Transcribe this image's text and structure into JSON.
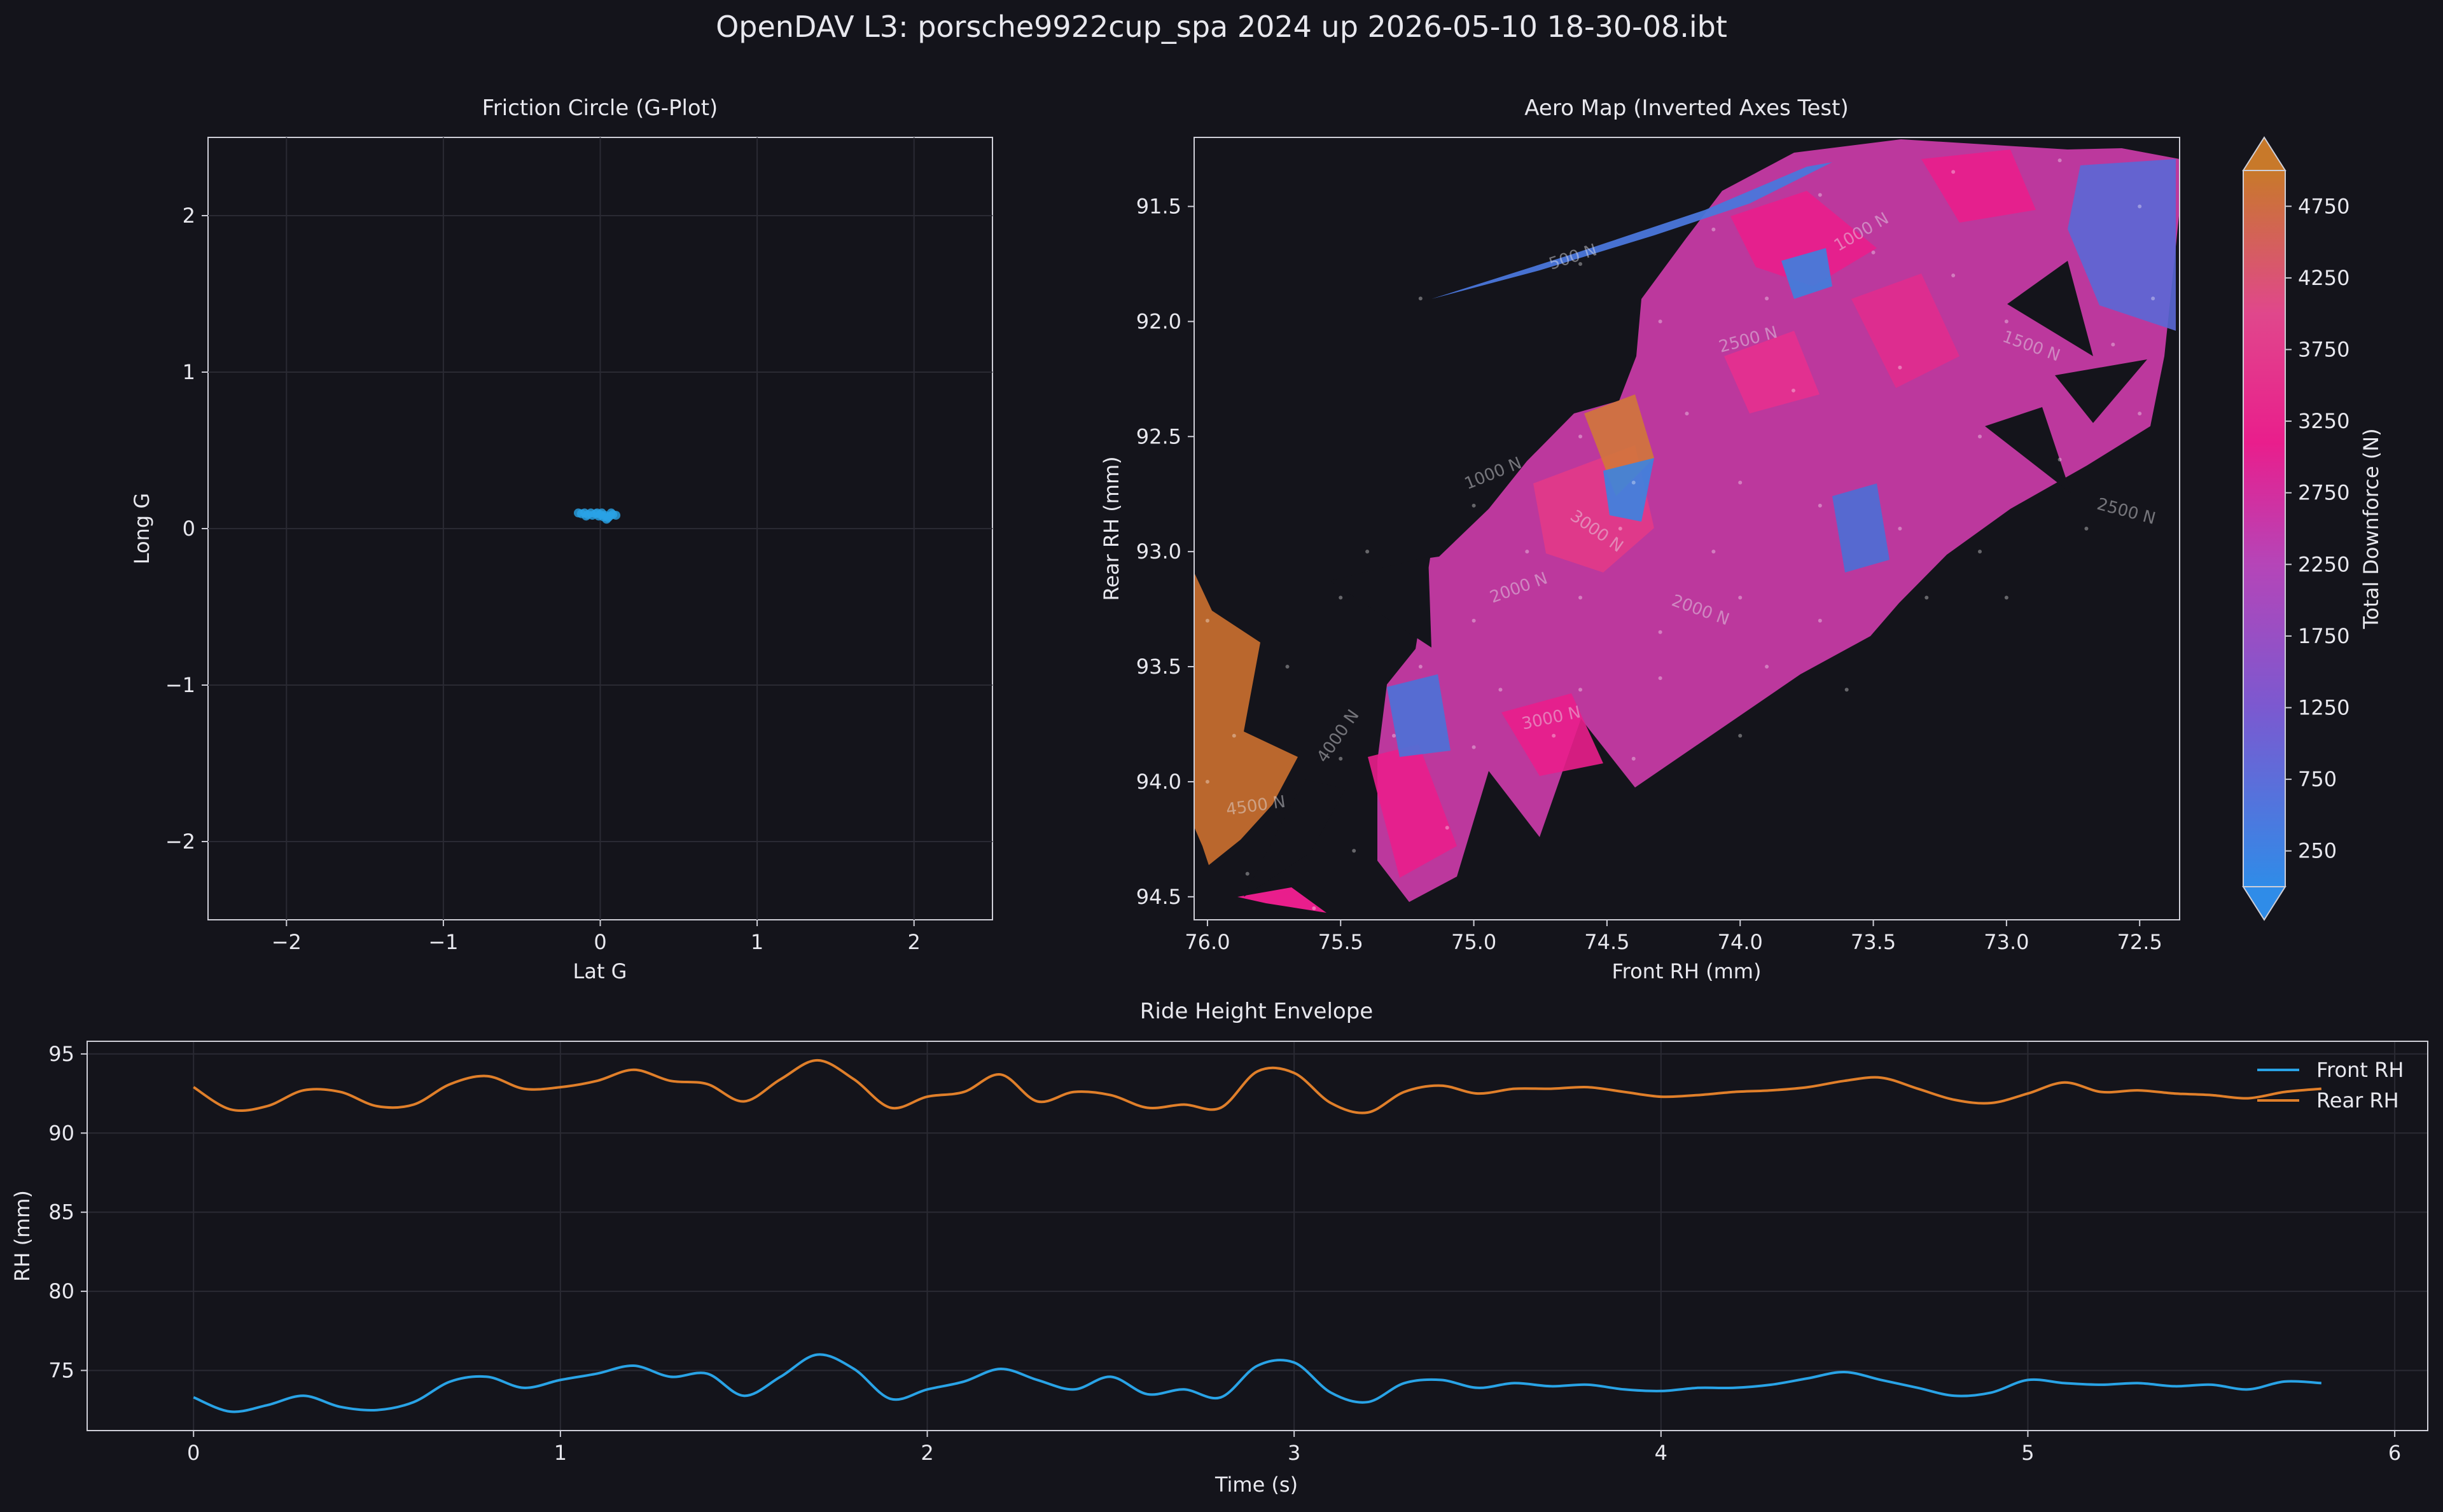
{
  "figure_title": "OpenDAV L3: porsche9922cup_spa 2024 up 2026-05-10 18-30-08.ibt",
  "colors": {
    "background": "#14141b",
    "axes_edge": "#cfcfd8",
    "grid": "#2a2a33",
    "front_rh": "#29a3e6",
    "rear_rh": "#e07f2a",
    "cmap_low": "#2f8ce8",
    "cmap_mid_low": "#7b59d0",
    "cmap_mid": "#b545b8",
    "cmap_mid_high": "#e91e8c",
    "cmap_high": "#c8792a"
  },
  "chart_data": [
    {
      "type": "scatter",
      "title": "Friction Circle (G-Plot)",
      "xlabel": "Lat G",
      "ylabel": "Long G",
      "xlim": [
        -2.5,
        2.5
      ],
      "ylim": [
        -2.5,
        2.5
      ],
      "xticks": [
        -2,
        -1,
        0,
        1,
        2
      ],
      "yticks": [
        -2,
        -1,
        0,
        1,
        2
      ],
      "grid": true,
      "points": [
        [
          -0.14,
          0.1
        ],
        [
          -0.12,
          0.095
        ],
        [
          -0.1,
          0.1
        ],
        [
          -0.08,
          0.09
        ],
        [
          -0.06,
          0.1
        ],
        [
          -0.05,
          0.085
        ],
        [
          -0.03,
          0.095
        ],
        [
          -0.01,
          0.08
        ],
        [
          0.0,
          0.09
        ],
        [
          0.02,
          0.075
        ],
        [
          0.03,
          0.085
        ],
        [
          0.05,
          0.07
        ],
        [
          0.06,
          0.08
        ],
        [
          0.08,
          0.09
        ],
        [
          0.04,
          0.06
        ],
        [
          -0.02,
          0.1
        ],
        [
          0.01,
          0.1
        ],
        [
          -0.09,
          0.08
        ],
        [
          0.07,
          0.1
        ],
        [
          0.1,
          0.085
        ]
      ]
    },
    {
      "type": "heatmap",
      "title": "Aero Map (Inverted Axes Test)",
      "xlabel": "Front RH (mm)",
      "ylabel": "Rear RH (mm)",
      "xlim": [
        76.05,
        72.35
      ],
      "ylim": [
        94.6,
        91.2
      ],
      "xticks": [
        "76.0",
        "75.5",
        "75.0",
        "74.5",
        "74.0",
        "73.5",
        "73.0",
        "72.5"
      ],
      "yticks": [
        "91.5",
        "92.0",
        "92.5",
        "93.0",
        "93.5",
        "94.0",
        "94.5"
      ],
      "colorbar": {
        "label": "Total Downforce (N)",
        "ticks": [
          "250",
          "750",
          "1250",
          "1750",
          "2250",
          "2750",
          "3250",
          "3750",
          "4250",
          "4750"
        ],
        "range": [
          0,
          5000
        ],
        "extend": "both"
      },
      "contour_labels": [
        "500 N",
        "1000 N",
        "1500 N",
        "2000 N",
        "2500 N",
        "3000 N",
        "4000 N",
        "4500 N"
      ],
      "samples": [
        [
          75.2,
          91.9,
          500
        ],
        [
          74.6,
          91.75,
          700
        ],
        [
          74.1,
          91.6,
          900
        ],
        [
          73.7,
          91.45,
          1100
        ],
        [
          73.2,
          91.35,
          1900
        ],
        [
          72.8,
          91.3,
          1300
        ],
        [
          72.5,
          91.5,
          1100
        ],
        [
          72.45,
          91.9,
          1000
        ],
        [
          72.6,
          92.1,
          700
        ],
        [
          72.5,
          92.4,
          800
        ],
        [
          73.5,
          91.7,
          2900
        ],
        [
          73.2,
          91.8,
          2400
        ],
        [
          73.0,
          92.0,
          1600
        ],
        [
          73.9,
          91.9,
          3100
        ],
        [
          74.3,
          92.0,
          3200
        ],
        [
          74.2,
          92.4,
          2600
        ],
        [
          73.8,
          92.3,
          2100
        ],
        [
          73.4,
          92.2,
          2500
        ],
        [
          73.1,
          92.5,
          1400
        ],
        [
          72.8,
          92.6,
          1600
        ],
        [
          74.6,
          92.5,
          3300
        ],
        [
          74.4,
          92.7,
          3800
        ],
        [
          74.45,
          92.9,
          1200
        ],
        [
          74.0,
          92.7,
          2000
        ],
        [
          73.7,
          92.8,
          1700
        ],
        [
          73.4,
          92.9,
          2600
        ],
        [
          73.1,
          93.0,
          1900
        ],
        [
          72.7,
          92.9,
          1800
        ],
        [
          75.0,
          92.8,
          1300
        ],
        [
          74.8,
          93.0,
          2500
        ],
        [
          75.4,
          93.0,
          1000
        ],
        [
          75.5,
          93.2,
          2200
        ],
        [
          75.0,
          93.3,
          2700
        ],
        [
          74.6,
          93.2,
          2800
        ],
        [
          74.3,
          93.35,
          2000
        ],
        [
          74.0,
          93.2,
          2400
        ],
        [
          73.7,
          93.3,
          2200
        ],
        [
          73.3,
          93.2,
          2000
        ],
        [
          73.0,
          93.2,
          1700
        ],
        [
          75.2,
          93.5,
          1200
        ],
        [
          74.9,
          93.6,
          2900
        ],
        [
          74.6,
          93.6,
          3100
        ],
        [
          74.3,
          93.55,
          2300
        ],
        [
          73.9,
          93.5,
          2200
        ],
        [
          73.6,
          93.6,
          2000
        ],
        [
          75.5,
          93.9,
          2300
        ],
        [
          75.3,
          93.8,
          800
        ],
        [
          75.0,
          93.85,
          2000
        ],
        [
          74.7,
          93.8,
          3400
        ],
        [
          74.4,
          93.9,
          2800
        ],
        [
          74.0,
          93.8,
          2100
        ],
        [
          75.45,
          94.3,
          2600
        ],
        [
          75.1,
          94.2,
          2700
        ],
        [
          75.6,
          94.55,
          3000
        ],
        [
          75.85,
          94.4,
          2500
        ],
        [
          76.0,
          94.0,
          4500
        ],
        [
          75.9,
          93.8,
          4300
        ],
        [
          76.0,
          93.3,
          4200
        ],
        [
          75.7,
          93.5,
          1800
        ],
        [
          74.1,
          93.0,
          2800
        ]
      ]
    },
    {
      "type": "line",
      "title": "Ride Height Envelope",
      "xlabel": "Time (s)",
      "ylabel": "RH (mm)",
      "xlim": [
        -0.29,
        6.09
      ],
      "ylim": [
        71.2,
        95.8
      ],
      "xticks": [
        0,
        1,
        2,
        3,
        4,
        5,
        6
      ],
      "yticks": [
        75,
        80,
        85,
        90,
        95
      ],
      "legend_position": "top-right",
      "x": [
        0.0,
        0.1,
        0.2,
        0.3,
        0.4,
        0.5,
        0.6,
        0.7,
        0.8,
        0.9,
        1.0,
        1.1,
        1.2,
        1.3,
        1.4,
        1.5,
        1.6,
        1.7,
        1.8,
        1.9,
        2.0,
        2.1,
        2.2,
        2.3,
        2.4,
        2.5,
        2.6,
        2.7,
        2.8,
        2.9,
        3.0,
        3.1,
        3.2,
        3.3,
        3.4,
        3.5,
        3.6,
        3.7,
        3.8,
        3.9,
        4.0,
        4.1,
        4.2,
        4.3,
        4.4,
        4.5,
        4.6,
        4.7,
        4.8,
        4.9,
        5.0,
        5.1,
        5.2,
        5.3,
        5.4,
        5.5,
        5.6,
        5.7,
        5.8
      ],
      "series": [
        {
          "name": "Front RH",
          "color": "#29a3e6",
          "values": [
            73.3,
            72.4,
            72.8,
            73.4,
            72.7,
            72.5,
            73.0,
            74.3,
            74.6,
            73.9,
            74.4,
            74.8,
            75.3,
            74.6,
            74.8,
            73.4,
            74.6,
            76.0,
            75.1,
            73.2,
            73.8,
            74.3,
            75.1,
            74.4,
            73.8,
            74.6,
            73.5,
            73.8,
            73.3,
            75.3,
            75.5,
            73.6,
            73.0,
            74.2,
            74.4,
            73.9,
            74.2,
            74.0,
            74.1,
            73.8,
            73.7,
            73.9,
            73.9,
            74.1,
            74.5,
            74.9,
            74.4,
            73.9,
            73.4,
            73.6,
            74.4,
            74.2,
            74.1,
            74.2,
            74.0,
            74.1,
            73.8,
            74.3,
            74.2
          ]
        },
        {
          "name": "Rear RH",
          "color": "#e07f2a",
          "values": [
            92.9,
            91.5,
            91.7,
            92.7,
            92.6,
            91.7,
            91.8,
            93.1,
            93.6,
            92.8,
            92.9,
            93.3,
            94.0,
            93.3,
            93.1,
            92.0,
            93.4,
            94.6,
            93.4,
            91.6,
            92.3,
            92.6,
            93.7,
            92.0,
            92.6,
            92.4,
            91.6,
            91.8,
            91.6,
            93.9,
            93.8,
            91.9,
            91.3,
            92.6,
            93.0,
            92.5,
            92.8,
            92.8,
            92.9,
            92.6,
            92.3,
            92.4,
            92.6,
            92.7,
            92.9,
            93.3,
            93.5,
            92.8,
            92.1,
            91.9,
            92.5,
            93.2,
            92.6,
            92.7,
            92.5,
            92.4,
            92.2,
            92.6,
            92.8
          ]
        }
      ]
    }
  ]
}
